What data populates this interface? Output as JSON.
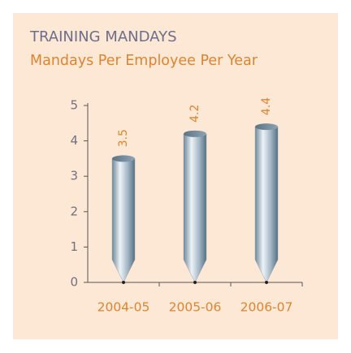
{
  "chart_data": {
    "type": "bar",
    "title": "TRAINING MANDAYS",
    "subtitle": "Mandays Per Employee Per Year",
    "categories": [
      "2004-05",
      "2005-06",
      "2006-07"
    ],
    "values": [
      3.5,
      4.2,
      4.4
    ],
    "color": "#8fa6b8",
    "ylim": [
      0,
      5
    ],
    "yticks": [
      0,
      1,
      2,
      3,
      4,
      5
    ],
    "grid": false
  }
}
